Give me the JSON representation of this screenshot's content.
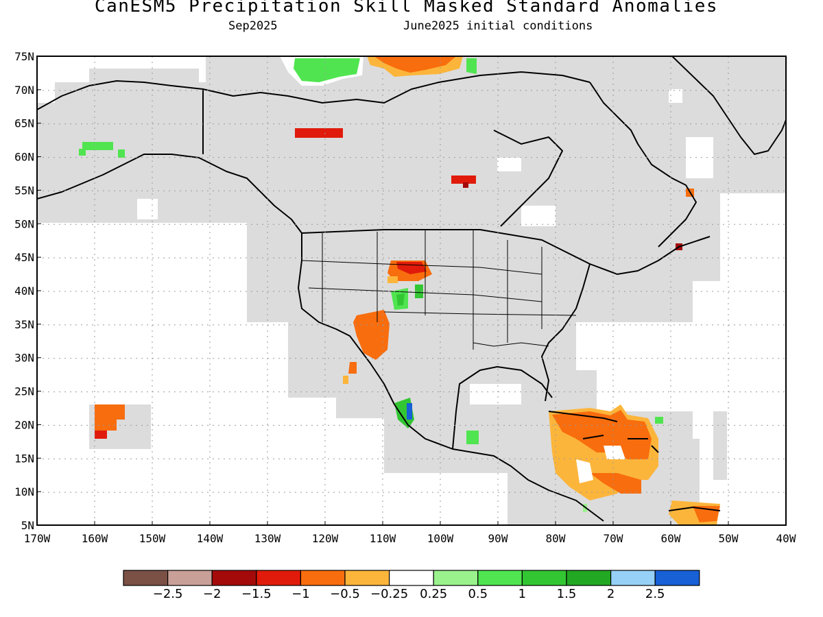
{
  "title": "CanESM5 Precipitation Skill Masked Standard Anomalies",
  "subtitle_left": "Sep2025",
  "subtitle_right": "June2025 initial conditions",
  "lat_labels": [
    "75N",
    "70N",
    "65N",
    "60N",
    "55N",
    "50N",
    "45N",
    "40N",
    "35N",
    "30N",
    "25N",
    "20N",
    "15N",
    "10N",
    "5N"
  ],
  "lon_labels": [
    "170W",
    "160W",
    "150W",
    "140W",
    "130W",
    "120W",
    "110W",
    "100W",
    "90W",
    "80W",
    "70W",
    "60W",
    "50W",
    "40W"
  ],
  "colorbar": {
    "colors": [
      "#7b5045",
      "#c8a097",
      "#a40a0a",
      "#e01b0b",
      "#f86d0e",
      "#fcb53b",
      "#ffffff",
      "#9af28c",
      "#50e550",
      "#33c633",
      "#22a822",
      "#96d0f7",
      "#1760d6"
    ],
    "labels": [
      "-2.5",
      "-2",
      "-1.5",
      "-1",
      "-0.5",
      "-0.25",
      "0.25",
      "0.5",
      "1",
      "1.5",
      "2",
      "2.5"
    ]
  },
  "colors": {
    "skill_mask": "#dcdcdc",
    "background": "#ffffff",
    "outline": "#000000"
  }
}
